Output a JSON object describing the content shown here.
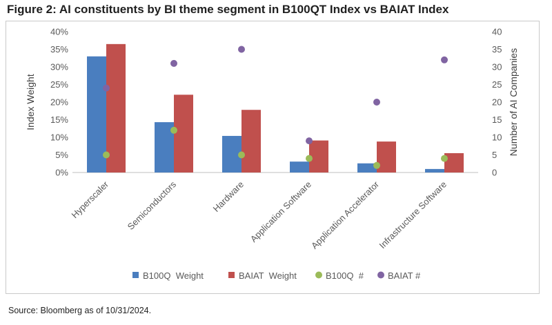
{
  "figure": {
    "title": "Figure 2: AI constituents by BI theme segment in B100QT Index vs BAIAT Index",
    "source": "Source: Bloomberg as of 10/31/2024."
  },
  "chart_data": {
    "type": "bar",
    "categories": [
      "Hyperscaler",
      "Semiconductors",
      "Hardware",
      "Application Software",
      "Application Accelerator",
      "Infrastructure Software"
    ],
    "series": [
      {
        "name": "B100Q  Weight",
        "kind": "bar",
        "axis": "left",
        "color": "#4a7ebf",
        "values": [
          33,
          14.3,
          10.4,
          3.1,
          2.6,
          1.0
        ]
      },
      {
        "name": "BAIAT  Weight",
        "kind": "bar",
        "axis": "left",
        "color": "#c0504d",
        "values": [
          36.5,
          22.1,
          17.8,
          9.1,
          8.8,
          5.5
        ]
      },
      {
        "name": "B100Q  #",
        "kind": "scatter",
        "axis": "right",
        "color": "#9bbb59",
        "values": [
          5,
          12,
          5,
          4,
          2,
          4
        ]
      },
      {
        "name": "BAIAT #",
        "kind": "scatter",
        "axis": "right",
        "color": "#8064a2",
        "values": [
          24,
          31,
          35,
          9,
          20,
          32
        ]
      }
    ],
    "ylabel": "Index Weight",
    "y2label": "Number of AI Companies",
    "ylim": [
      0,
      0.4
    ],
    "y2lim": [
      0,
      40
    ],
    "yticks": [
      "0%",
      "5%",
      "10%",
      "15%",
      "20%",
      "25%",
      "30%",
      "35%",
      "40%"
    ],
    "y2ticks": [
      "0",
      "5",
      "10",
      "15",
      "20",
      "25",
      "30",
      "35",
      "40"
    ],
    "grid": false,
    "legend": "bottom"
  }
}
